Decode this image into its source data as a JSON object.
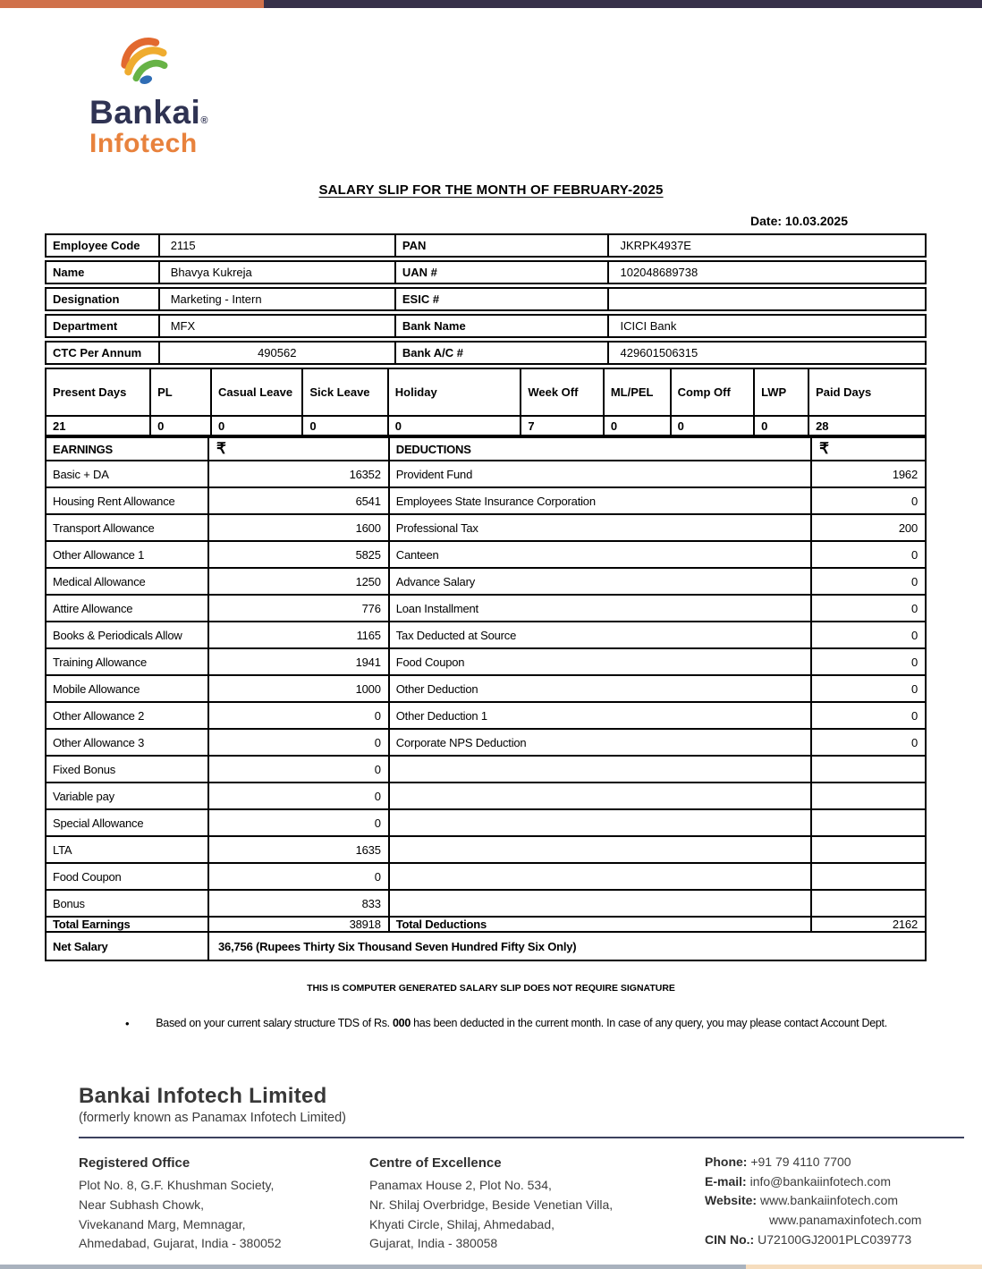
{
  "page": {
    "colors": {
      "bar_orange": "#d0714b",
      "bar_navy": "#37314a",
      "brand_navy": "#2f3353",
      "brand_orange": "#e8823d"
    },
    "logo": {
      "brand": "Bankai",
      "reg": "®",
      "sub": "Infotech"
    },
    "title": "SALARY SLIP FOR THE MONTH OF FEBRUARY-2025",
    "date": "Date: 10.03.2025"
  },
  "employee_info": {
    "rows": [
      {
        "l1": "Employee Code",
        "v1": "2115",
        "l2": "PAN",
        "v2": "JKRPK4937E"
      },
      {
        "l1": "Name",
        "v1": "Bhavya Kukreja",
        "l2": "UAN #",
        "v2": "102048689738"
      },
      {
        "l1": "Designation",
        "v1": "Marketing - Intern",
        "l2": "ESIC #",
        "v2": ""
      },
      {
        "l1": "Department",
        "v1": "MFX",
        "l2": "Bank Name",
        "v2": "ICICI Bank"
      },
      {
        "l1": "CTC Per Annum",
        "v1": "490562",
        "l2": "Bank A/C #",
        "v2": "429601506315"
      }
    ]
  },
  "attendance": {
    "headers": [
      "Present Days",
      "PL",
      "Casual Leave",
      "Sick Leave",
      "Holiday",
      "Week Off",
      "ML/PEL",
      "Comp Off",
      "LWP",
      "Paid Days"
    ],
    "values": [
      "21",
      "0",
      "0",
      "0",
      "0",
      "7",
      "0",
      "0",
      "0",
      "28"
    ]
  },
  "salary_table": {
    "earnings_header": "EARNINGS",
    "deductions_header": "DEDUCTIONS",
    "currency_symbol": "₹",
    "rows": [
      {
        "e": "Basic + DA",
        "ev": "16352",
        "d": "Provident Fund",
        "dv": "1962"
      },
      {
        "e": "Housing Rent Allowance",
        "ev": "6541",
        "d": "Employees State Insurance Corporation",
        "dv": "0"
      },
      {
        "e": "Transport Allowance",
        "ev": "1600",
        "d": "Professional Tax",
        "dv": "200"
      },
      {
        "e": "Other Allowance 1",
        "ev": "5825",
        "d": "Canteen",
        "dv": "0"
      },
      {
        "e": "Medical Allowance",
        "ev": "1250",
        "d": "Advance Salary",
        "dv": "0"
      },
      {
        "e": "Attire Allowance",
        "ev": "776",
        "d": "Loan Installment",
        "dv": "0"
      },
      {
        "e": "Books & Periodicals Allow",
        "ev": "1165",
        "d": "Tax Deducted at Source",
        "dv": "0"
      },
      {
        "e": "Training Allowance",
        "ev": "1941",
        "d": "Food Coupon",
        "dv": "0"
      },
      {
        "e": "Mobile Allowance",
        "ev": "1000",
        "d": "Other Deduction",
        "dv": "0"
      },
      {
        "e": "Other Allowance 2",
        "ev": "0",
        "d": "Other Deduction 1",
        "dv": "0"
      },
      {
        "e": "Other Allowance 3",
        "ev": "0",
        "d": "Corporate NPS Deduction",
        "dv": "0"
      },
      {
        "e": "Fixed Bonus",
        "ev": "0",
        "d": "",
        "dv": ""
      },
      {
        "e": "Variable pay",
        "ev": "0",
        "d": "",
        "dv": ""
      },
      {
        "e": "Special Allowance",
        "ev": "0",
        "d": "",
        "dv": ""
      },
      {
        "e": "LTA",
        "ev": "1635",
        "d": "",
        "dv": ""
      },
      {
        "e": "Food Coupon",
        "ev": "0",
        "d": "",
        "dv": ""
      },
      {
        "e": "Bonus",
        "ev": "833",
        "d": "",
        "dv": ""
      }
    ],
    "total_earnings_label": "Total Earnings",
    "total_earnings_value": "38918",
    "total_deductions_label": "Total Deductions",
    "total_deductions_value": "2162",
    "net_salary_label": "Net Salary",
    "net_salary_value": "36,756 (Rupees Thirty Six Thousand Seven Hundred Fifty Six Only)"
  },
  "notes": {
    "generated": "THIS IS COMPUTER GENERATED SALARY SLIP DOES NOT REQUIRE SIGNATURE",
    "bullet_pre": "Based on your current salary structure TDS of Rs. ",
    "bullet_bold": "000",
    "bullet_post": " has been deducted in the current month. In case of any query, you may please contact Account Dept."
  },
  "footer": {
    "company": "Bankai Infotech Limited",
    "formerly": "(formerly known as Panamax Infotech Limited)",
    "registered_office": {
      "title": "Registered Office",
      "line1": "Plot No. 8, G.F. Khushman Society,",
      "line2": "Near Subhash Chowk,",
      "line3": "Vivekanand Marg, Memnagar,",
      "line4": "Ahmedabad, Gujarat, India - 380052"
    },
    "centre_of_excellence": {
      "title": "Centre of Excellence",
      "line1": "Panamax House 2, Plot No. 534,",
      "line2": "Nr. Shilaj Overbridge, Beside Venetian Villa,",
      "line3": "Khyati Circle, Shilaj, Ahmedabad,",
      "line4": "Gujarat, India - 380058"
    },
    "contact": {
      "phone_label": "Phone:",
      "phone": " +91 79 4110 7700",
      "email_label": "E-mail:",
      "email": " info@bankaiinfotech.com",
      "website_label": "Website:",
      "website1": " www.bankaiinfotech.com",
      "website2": "www.panamaxinfotech.com",
      "cin_label": "CIN No.:",
      "cin": " U72100GJ2001PLC039773"
    }
  }
}
